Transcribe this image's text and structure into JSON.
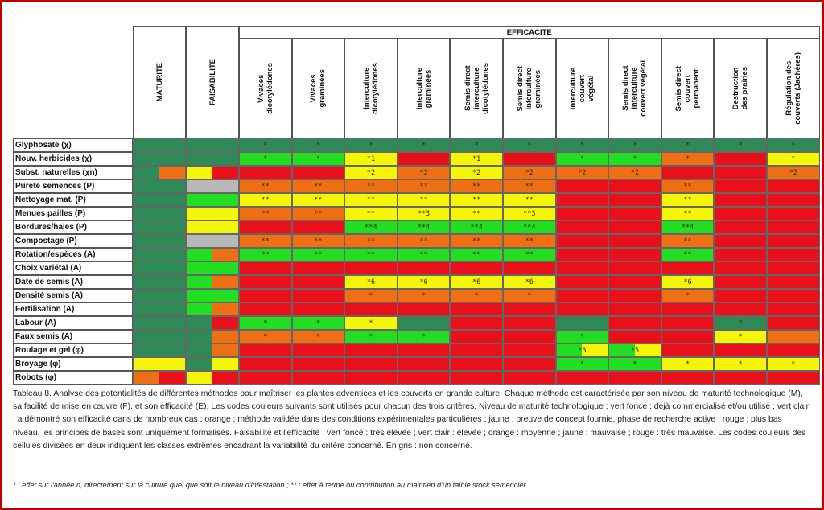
{
  "headers": {
    "maturite": "MATURITE",
    "faisabilite": "FAISABILITE",
    "efficacite": "EFFICACITE",
    "efficacite_columns": [
      "Vivaces\ndicotylédones",
      "Vivaces\ngraminées",
      "Interculture\ndicotylédones",
      "Interculture\ngraminées",
      "Semis direct\ninterculture\ndicotylédones",
      "Semis direct\ninterculture\ngraminées",
      "Interculture\ncouvert\nvégétal",
      "Semis direct\ninterculture\ncouvert végétal",
      "Semis direct\ncouvert\npermanent",
      "Destruction\ndes prairies",
      "Régulation des\ncouverts (Jachères)"
    ]
  },
  "colors": {
    "G": "#2e8b57",
    "L": "#22dd22",
    "Y": "#f5f50a",
    "O": "#ef6f14",
    "R": "#e8101a",
    "S": "#b8b8b8",
    "border": "#666666",
    "frame": "#c00000"
  },
  "rows": [
    {
      "label": "Glyphosate (χ)",
      "m": "G",
      "f": "G",
      "e": [
        "G",
        "G",
        "G",
        "G",
        "G",
        "G",
        "G",
        "G",
        "G",
        "G",
        "G"
      ],
      "marks": [
        "*",
        "*",
        "*",
        "*",
        "*",
        "*",
        "*",
        "*",
        "*",
        "*",
        "*"
      ]
    },
    {
      "label": "Nouv. herbicides (χ)",
      "m": "G",
      "f": "G",
      "e": [
        "L",
        "L",
        "Y",
        "R",
        "Y",
        "R",
        "L",
        "L",
        "O",
        "R",
        "Y"
      ],
      "marks": [
        "*",
        "*",
        "*1",
        "",
        "*1",
        "",
        "*",
        "*",
        "*",
        "",
        "*"
      ]
    },
    {
      "label": "Subst. naturelles (χn)",
      "m": "G|O",
      "f": "Y|R",
      "e": [
        "R",
        "R",
        "Y",
        "O",
        "Y",
        "O",
        "O",
        "O",
        "R",
        "R",
        "O"
      ],
      "marks": [
        "",
        "",
        "*2",
        "*2",
        "*2",
        "*2",
        "*2",
        "*2",
        "",
        "",
        "*2"
      ]
    },
    {
      "label": "Pureté semences (P)",
      "m": "G",
      "f": "S",
      "e": [
        "O",
        "O",
        "O",
        "O",
        "O",
        "O",
        "R",
        "R",
        "O",
        "R",
        "R"
      ],
      "marks": [
        "**",
        "**",
        "**",
        "**",
        "**",
        "**",
        "",
        "",
        "**",
        "",
        ""
      ]
    },
    {
      "label": "Nettoyage mat. (P)",
      "m": "G",
      "f": "L",
      "e": [
        "Y",
        "Y",
        "Y",
        "Y",
        "Y",
        "Y",
        "R",
        "R",
        "Y",
        "R",
        "R"
      ],
      "marks": [
        "**",
        "**",
        "**",
        "**",
        "**",
        "**",
        "",
        "",
        "**",
        "",
        ""
      ]
    },
    {
      "label": "Menues pailles (P)",
      "m": "G",
      "f": "Y",
      "e": [
        "O",
        "O",
        "Y",
        "Y",
        "Y",
        "Y",
        "R",
        "R",
        "Y",
        "R",
        "R"
      ],
      "marks": [
        "**",
        "**",
        "**",
        "**3",
        "**",
        "**3",
        "",
        "",
        "**",
        "",
        ""
      ]
    },
    {
      "label": "Bordures/haies (P)",
      "m": "G",
      "f": "Y",
      "e": [
        "R",
        "R",
        "L",
        "L",
        "L",
        "L",
        "R",
        "R",
        "L",
        "R",
        "R"
      ],
      "marks": [
        "",
        "",
        "**4",
        "**4",
        "**4",
        "**4",
        "",
        "",
        "**4",
        "",
        ""
      ]
    },
    {
      "label": "Compostage (P)",
      "m": "G",
      "f": "S",
      "e": [
        "O",
        "O",
        "O",
        "O",
        "O",
        "O",
        "R",
        "R",
        "O",
        "R",
        "R"
      ],
      "marks": [
        "**",
        "**",
        "**",
        "**",
        "**",
        "**",
        "",
        "",
        "**",
        "",
        ""
      ]
    },
    {
      "label": "Rotation/espèces (A)",
      "m": "G",
      "f": "L|O",
      "e": [
        "L",
        "L",
        "L",
        "L",
        "L",
        "L",
        "R",
        "R",
        "L",
        "R",
        "R"
      ],
      "marks": [
        "**",
        "**",
        "**",
        "**",
        "**",
        "**",
        "",
        "",
        "**",
        "",
        ""
      ]
    },
    {
      "label": "Choix variétal (A)",
      "m": "G",
      "f": "L",
      "e": [
        "R",
        "R",
        "R",
        "R",
        "R",
        "R",
        "R",
        "R",
        "R",
        "R",
        "R"
      ],
      "marks": [
        "",
        "",
        "",
        "",
        "",
        "",
        "",
        "",
        "",
        "",
        ""
      ]
    },
    {
      "label": "Date de semis (A)",
      "m": "G",
      "f": "L|O",
      "e": [
        "R",
        "R",
        "Y",
        "Y",
        "Y",
        "Y",
        "R",
        "R",
        "Y",
        "R",
        "R"
      ],
      "marks": [
        "",
        "",
        "*6",
        "*6",
        "*6",
        "*6",
        "",
        "",
        "*6",
        "",
        ""
      ]
    },
    {
      "label": "Densité semis (A)",
      "m": "G",
      "f": "L",
      "e": [
        "R",
        "R",
        "O",
        "O",
        "O",
        "O",
        "R",
        "R",
        "O",
        "R",
        "R"
      ],
      "marks": [
        "",
        "",
        "*",
        "*",
        "*",
        "*",
        "",
        "",
        "*",
        "",
        ""
      ]
    },
    {
      "label": "Fertilisation (A)",
      "m": "G",
      "f": "L|O",
      "e": [
        "R",
        "R",
        "R",
        "R",
        "R",
        "R",
        "R",
        "R",
        "R",
        "R",
        "R"
      ],
      "marks": [
        "",
        "",
        "",
        "",
        "",
        "",
        "",
        "",
        "",
        "",
        ""
      ]
    },
    {
      "label": "Labour (A)",
      "m": "G",
      "f": "G|R",
      "e": [
        "L",
        "L",
        "Y",
        "G",
        "R",
        "R",
        "G",
        "R",
        "R",
        "G",
        "R"
      ],
      "marks": [
        "*",
        "*",
        "*",
        "",
        "",
        "",
        "",
        "",
        "",
        "*",
        ""
      ]
    },
    {
      "label": "Faux semis (A)",
      "m": "G",
      "f": "G|O",
      "e": [
        "O",
        "O",
        "L",
        "L",
        "R",
        "R",
        "L",
        "R",
        "R",
        "Y",
        "O"
      ],
      "marks": [
        "*",
        "*",
        "*",
        "*",
        "",
        "",
        "*",
        "",
        "",
        "*",
        ""
      ]
    },
    {
      "label": "Roulage et gel (φ)",
      "m": "G",
      "f": "G|O",
      "e": [
        "R",
        "R",
        "R",
        "R",
        "R",
        "R",
        "L|Y",
        "L|Y",
        "R",
        "R",
        "R"
      ],
      "marks": [
        "",
        "",
        "",
        "",
        "",
        "",
        "*5",
        "*5",
        "",
        "",
        ""
      ]
    },
    {
      "label": "Broyage (φ)",
      "m": "Y|Y",
      "f": "G|Y",
      "e": [
        "R",
        "R",
        "R",
        "R",
        "R",
        "R",
        "L",
        "L",
        "Y",
        "Y",
        "Y"
      ],
      "marks": [
        "",
        "",
        "",
        "",
        "",
        "",
        "*",
        "*",
        "*",
        "*",
        "*"
      ]
    },
    {
      "label": "Robots (φ)",
      "m": "O|R",
      "f": "Y|R",
      "e": [
        "R",
        "R",
        "R",
        "R",
        "R",
        "R",
        "R",
        "R",
        "R",
        "R",
        "R"
      ],
      "marks": [
        "",
        "",
        "",
        "",
        "",
        "",
        "",
        "",
        "",
        "",
        ""
      ]
    }
  ],
  "caption": "Tableau 8. Analyse des potentialités de différentes méthodes pour maîtriser les plantes adventices et les couverts en grande culture. Chaque méthode est caractérisée par son niveau de maturité technologique (M), sa facilité de mise en œuvre (F), et son efficacité (E). Les codes couleurs suivants sont utilisés pour chacun des trois critères. Niveau de maturité technologique ; vert foncé : déjà commercialisé et/ou utilisé ; vert clair : a démontré son efficacité dans de nombreux cas ; orange : méthode validée dans des conditions expérimentales particulières ; jaune : preuve de concept fournie, phase de recherche active ; rouge : plus bas niveau, les principes de bases sont uniquement formalisés. Faisabilité et l'efficacité ; vert foncé : très élevée ; vert clair : élevée ; orange : moyenne ; jaune : mauvaise ; rouge : très mauvaise. Les codes couleurs des cellules divisées en deux indiquent les classes extrêmes encadrant la variabilité du critère concerné. En gris : non concerné.",
  "footnote": "* : effet sur l'année n, directement sur la culture quel que soit le niveau d'infestation ; ** : effet à terme ou contribution au maintien d'un faible stock semencier."
}
